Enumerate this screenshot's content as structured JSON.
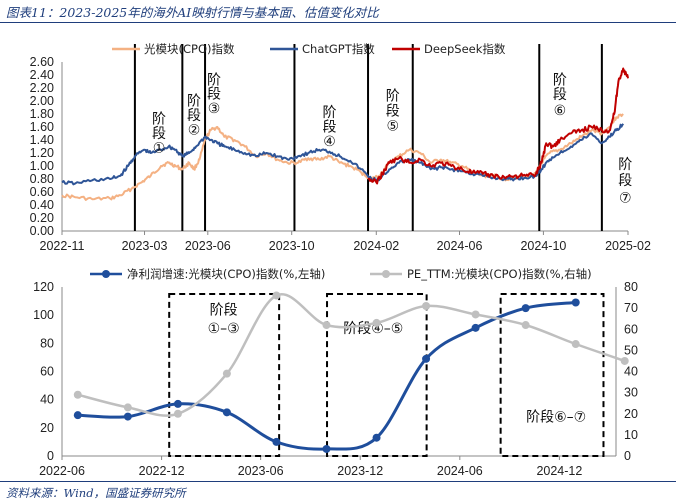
{
  "header": {
    "title": "图表11：2023-2025年的海外AI映射行情与基本面、估值变化对比",
    "source": "资料来源：Wind，国盛证券研究所"
  },
  "chart_data": [
    {
      "type": "line",
      "ylim": [
        0,
        2.6
      ],
      "yticks": [
        "0.00",
        "0.20",
        "0.40",
        "0.60",
        "0.80",
        "1.00",
        "1.20",
        "1.40",
        "1.60",
        "1.80",
        "2.00",
        "2.20",
        "2.40",
        "2.60"
      ],
      "xticks": [
        "2022-11",
        "2023-03",
        "2023-06",
        "2023-10",
        "2024-02",
        "2024-06",
        "2024-10",
        "2025-02"
      ],
      "xrange": [
        "2022-11-01",
        "2025-02-01"
      ],
      "legend_position": "top",
      "series": [
        {
          "name": "光模块(CPO)指数",
          "color": "#f4b183",
          "points": [
            [
              "2022-11-01",
              0.55
            ],
            [
              "2022-11-20",
              0.52
            ],
            [
              "2022-12-15",
              0.49
            ],
            [
              "2023-01-10",
              0.5
            ],
            [
              "2023-01-25",
              0.55
            ],
            [
              "2023-02-10",
              0.65
            ],
            [
              "2023-02-25",
              0.75
            ],
            [
              "2023-03-10",
              0.85
            ],
            [
              "2023-03-25",
              1.0
            ],
            [
              "2023-04-05",
              1.05
            ],
            [
              "2023-04-15",
              1.0
            ],
            [
              "2023-04-25",
              0.95
            ],
            [
              "2023-05-05",
              1.05
            ],
            [
              "2023-05-12",
              0.95
            ],
            [
              "2023-05-20",
              1.1
            ],
            [
              "2023-05-28",
              1.4
            ],
            [
              "2023-06-05",
              1.55
            ],
            [
              "2023-06-15",
              1.6
            ],
            [
              "2023-06-25",
              1.45
            ],
            [
              "2023-07-10",
              1.4
            ],
            [
              "2023-07-25",
              1.3
            ],
            [
              "2023-08-10",
              1.15
            ],
            [
              "2023-08-25",
              1.2
            ],
            [
              "2023-09-10",
              1.1
            ],
            [
              "2023-09-25",
              1.05
            ],
            [
              "2023-10-10",
              1.05
            ],
            [
              "2023-10-25",
              1.12
            ],
            [
              "2023-11-10",
              1.1
            ],
            [
              "2023-11-25",
              1.15
            ],
            [
              "2023-12-10",
              1.05
            ],
            [
              "2023-12-25",
              1.0
            ],
            [
              "2024-01-10",
              0.9
            ],
            [
              "2024-01-25",
              0.8
            ],
            [
              "2024-02-05",
              0.85
            ],
            [
              "2024-02-20",
              1.05
            ],
            [
              "2024-03-05",
              1.15
            ],
            [
              "2024-03-20",
              1.25
            ],
            [
              "2024-04-05",
              1.2
            ],
            [
              "2024-04-20",
              1.05
            ],
            [
              "2024-05-05",
              1.1
            ],
            [
              "2024-05-20",
              1.05
            ],
            [
              "2024-06-05",
              1.0
            ],
            [
              "2024-06-20",
              0.9
            ],
            [
              "2024-07-05",
              0.85
            ],
            [
              "2024-07-20",
              0.85
            ],
            [
              "2024-08-05",
              0.8
            ],
            [
              "2024-08-20",
              0.82
            ],
            [
              "2024-09-05",
              0.85
            ],
            [
              "2024-09-20",
              0.88
            ],
            [
              "2024-09-28",
              1.05
            ],
            [
              "2024-10-10",
              1.2
            ],
            [
              "2024-10-25",
              1.25
            ],
            [
              "2024-11-10",
              1.35
            ],
            [
              "2024-11-25",
              1.45
            ],
            [
              "2024-12-10",
              1.55
            ],
            [
              "2024-12-25",
              1.5
            ],
            [
              "2025-01-05",
              1.6
            ],
            [
              "2025-01-15",
              1.75
            ],
            [
              "2025-01-25",
              1.8
            ]
          ]
        },
        {
          "name": "ChatGPT指数",
          "color": "#2f5597",
          "points": [
            [
              "2022-11-01",
              0.75
            ],
            [
              "2022-11-20",
              0.73
            ],
            [
              "2022-12-15",
              0.78
            ],
            [
              "2023-01-10",
              0.8
            ],
            [
              "2023-01-25",
              0.85
            ],
            [
              "2023-02-05",
              1.0
            ],
            [
              "2023-02-15",
              1.15
            ],
            [
              "2023-02-28",
              1.25
            ],
            [
              "2023-03-10",
              1.2
            ],
            [
              "2023-03-25",
              1.25
            ],
            [
              "2023-04-05",
              1.3
            ],
            [
              "2023-04-15",
              1.25
            ],
            [
              "2023-04-25",
              1.15
            ],
            [
              "2023-05-05",
              1.2
            ],
            [
              "2023-05-15",
              1.3
            ],
            [
              "2023-05-28",
              1.45
            ],
            [
              "2023-06-05",
              1.4
            ],
            [
              "2023-06-15",
              1.35
            ],
            [
              "2023-06-25",
              1.3
            ],
            [
              "2023-07-10",
              1.25
            ],
            [
              "2023-07-25",
              1.2
            ],
            [
              "2023-08-10",
              1.15
            ],
            [
              "2023-08-25",
              1.2
            ],
            [
              "2023-09-10",
              1.15
            ],
            [
              "2023-09-25",
              1.1
            ],
            [
              "2023-10-10",
              1.15
            ],
            [
              "2023-10-25",
              1.2
            ],
            [
              "2023-11-10",
              1.25
            ],
            [
              "2023-11-25",
              1.22
            ],
            [
              "2023-12-10",
              1.15
            ],
            [
              "2023-12-25",
              1.08
            ],
            [
              "2024-01-10",
              0.95
            ],
            [
              "2024-01-25",
              0.8
            ],
            [
              "2024-02-05",
              0.78
            ],
            [
              "2024-02-20",
              0.95
            ],
            [
              "2024-03-05",
              1.05
            ],
            [
              "2024-03-20",
              1.1
            ],
            [
              "2024-04-05",
              1.05
            ],
            [
              "2024-04-20",
              0.95
            ],
            [
              "2024-05-05",
              0.98
            ],
            [
              "2024-05-20",
              0.95
            ],
            [
              "2024-06-05",
              0.92
            ],
            [
              "2024-06-20",
              0.88
            ],
            [
              "2024-07-05",
              0.85
            ],
            [
              "2024-07-20",
              0.82
            ],
            [
              "2024-08-05",
              0.8
            ],
            [
              "2024-08-20",
              0.8
            ],
            [
              "2024-09-05",
              0.82
            ],
            [
              "2024-09-20",
              0.85
            ],
            [
              "2024-09-28",
              0.95
            ],
            [
              "2024-10-10",
              1.1
            ],
            [
              "2024-10-25",
              1.2
            ],
            [
              "2024-11-10",
              1.3
            ],
            [
              "2024-11-25",
              1.4
            ],
            [
              "2024-12-10",
              1.5
            ],
            [
              "2024-12-25",
              1.35
            ],
            [
              "2025-01-05",
              1.45
            ],
            [
              "2025-01-15",
              1.55
            ],
            [
              "2025-01-25",
              1.65
            ]
          ]
        },
        {
          "name": "DeepSeek指数",
          "color": "#c00000",
          "points": [
            [
              "2024-01-20",
              0.8
            ],
            [
              "2024-02-01",
              0.75
            ],
            [
              "2024-02-10",
              0.88
            ],
            [
              "2024-02-20",
              1.05
            ],
            [
              "2024-03-05",
              1.12
            ],
            [
              "2024-03-20",
              1.05
            ],
            [
              "2024-04-05",
              1.1
            ],
            [
              "2024-04-20",
              1.0
            ],
            [
              "2024-05-05",
              1.05
            ],
            [
              "2024-05-20",
              1.0
            ],
            [
              "2024-06-05",
              0.95
            ],
            [
              "2024-06-20",
              0.9
            ],
            [
              "2024-07-05",
              0.88
            ],
            [
              "2024-07-20",
              0.85
            ],
            [
              "2024-08-05",
              0.83
            ],
            [
              "2024-08-20",
              0.85
            ],
            [
              "2024-09-05",
              0.85
            ],
            [
              "2024-09-20",
              0.87
            ],
            [
              "2024-09-28",
              1.05
            ],
            [
              "2024-10-05",
              1.35
            ],
            [
              "2024-10-15",
              1.3
            ],
            [
              "2024-10-25",
              1.4
            ],
            [
              "2024-11-10",
              1.5
            ],
            [
              "2024-11-25",
              1.55
            ],
            [
              "2024-12-10",
              1.6
            ],
            [
              "2024-12-25",
              1.55
            ],
            [
              "2025-01-05",
              1.55
            ],
            [
              "2025-01-12",
              1.8
            ],
            [
              "2025-01-18",
              2.3
            ],
            [
              "2025-01-25",
              2.5
            ],
            [
              "2025-02-01",
              2.35
            ]
          ]
        }
      ],
      "stage_lines": [
        "2023-02-15",
        "2023-04-25",
        "2023-05-28",
        "2023-10-05",
        "2024-01-20",
        "2024-03-25",
        "2024-09-25",
        "2024-12-25"
      ],
      "stage_labels": [
        {
          "lines": [
            "阶",
            "段",
            "①"
          ],
          "at": "2023-03-22",
          "y": [
            1.75,
            1.52,
            1.3
          ]
        },
        {
          "lines": [
            "阶",
            "段",
            "②"
          ],
          "at": "2023-05-12",
          "y": [
            2.02,
            1.8,
            1.58
          ]
        },
        {
          "lines": [
            "阶",
            "段",
            "③"
          ],
          "at": "2023-06-10",
          "y": [
            2.35,
            2.13,
            1.91
          ]
        },
        {
          "lines": [
            "阶",
            "段",
            "④"
          ],
          "at": "2023-11-25",
          "y": [
            1.85,
            1.62,
            1.4
          ]
        },
        {
          "lines": [
            "阶",
            "段",
            "⑤"
          ],
          "at": "2024-02-25",
          "y": [
            2.1,
            1.87,
            1.64
          ]
        },
        {
          "lines": [
            "阶",
            "段",
            "⑥"
          ],
          "at": "2024-10-25",
          "y": [
            2.35,
            2.12,
            1.88
          ]
        },
        {
          "lines": [
            "阶",
            "段",
            "⑦"
          ],
          "at": "2025-01-28",
          "y": [
            1.05,
            0.8,
            0.53
          ]
        }
      ]
    },
    {
      "type": "line",
      "ylim": [
        0,
        120
      ],
      "y2lim": [
        0,
        80
      ],
      "yticks": [
        "0",
        "20",
        "40",
        "60",
        "80",
        "100",
        "120"
      ],
      "y2ticks": [
        "0",
        "10",
        "20",
        "30",
        "40",
        "50",
        "60",
        "70",
        "80"
      ],
      "xticks": [
        "2022-06",
        "2022-12",
        "2023-06",
        "2023-12",
        "2024-06",
        "2024-12"
      ],
      "xrange": [
        "2022-06-01",
        "2025-03-15"
      ],
      "legend_position": "top",
      "series": [
        {
          "name": "净利润增速:光模块(CPO)指数(%,左轴)",
          "color": "#1f4e9c",
          "axis": "left",
          "points": [
            [
              "2022-06-30",
              29
            ],
            [
              "2022-09-30",
              28
            ],
            [
              "2022-12-31",
              37
            ],
            [
              "2023-03-31",
              31
            ],
            [
              "2023-06-30",
              10
            ],
            [
              "2023-09-30",
              5
            ],
            [
              "2023-12-31",
              13
            ],
            [
              "2024-03-31",
              69
            ],
            [
              "2024-06-30",
              91
            ],
            [
              "2024-09-30",
              105
            ],
            [
              "2024-12-31",
              109
            ]
          ]
        },
        {
          "name": "PE_TTM:光模块(CPO)指数(%,右轴)",
          "color": "#bfbfbf",
          "axis": "right",
          "points": [
            [
              "2022-06-30",
              29
            ],
            [
              "2022-09-30",
              23
            ],
            [
              "2022-12-31",
              20
            ],
            [
              "2023-03-31",
              39
            ],
            [
              "2023-06-30",
              76
            ],
            [
              "2023-09-30",
              62
            ],
            [
              "2023-12-31",
              63
            ],
            [
              "2024-03-31",
              71
            ],
            [
              "2024-06-30",
              67
            ],
            [
              "2024-09-30",
              62
            ],
            [
              "2024-12-31",
              53
            ],
            [
              "2025-03-31",
              45
            ]
          ]
        }
      ],
      "boxes": [
        {
          "label": [
            "阶段",
            "①–③"
          ],
          "from": "2022-12-15",
          "to": "2023-07-05",
          "label_at": "2023-03-25",
          "label_y": [
            104,
            91
          ]
        },
        {
          "label": [
            "阶段④–⑤"
          ],
          "from": "2023-10-01",
          "to": "2024-04-01",
          "label_at": "2023-12-25",
          "label_y": [
            91
          ]
        },
        {
          "label": [
            "阶段⑥–⑦"
          ],
          "from": "2024-08-15",
          "to": "2025-02-20",
          "label_at": "2024-11-25",
          "label_y": [
            28
          ]
        }
      ]
    }
  ]
}
